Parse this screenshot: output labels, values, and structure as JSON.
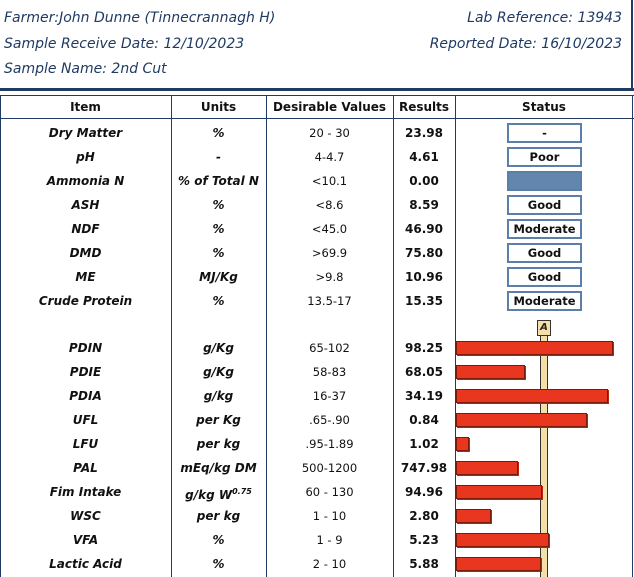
{
  "header": {
    "farmer": "Farmer:John Dunne (Tinnecrannagh H)",
    "lab_reference": "Lab Reference: 13943",
    "sample_receive_date": "Sample Receive Date: 12/10/2023",
    "reported_date": "Reported Date: 16/10/2023",
    "sample_name": "Sample Name: 2nd Cut"
  },
  "table": {
    "columns": [
      "Item",
      "Units",
      "Desirable Values",
      "Results",
      "Status"
    ],
    "rows_status": [
      {
        "item": "Dry Matter",
        "units": "%",
        "desirable": "20 - 30",
        "result": "23.98",
        "status": "-",
        "filled": false
      },
      {
        "item": "pH",
        "units": "-",
        "desirable": "4-4.7",
        "result": "4.61",
        "status": "Poor",
        "filled": false
      },
      {
        "item": "Ammonia N",
        "units": "% of Total N",
        "desirable": "<10.1",
        "result": "0.00",
        "status": "",
        "filled": true
      },
      {
        "item": "ASH",
        "units": "%",
        "desirable": "<8.6",
        "result": "8.59",
        "status": "Good",
        "filled": false
      },
      {
        "item": "NDF",
        "units": "%",
        "desirable": "<45.0",
        "result": "46.90",
        "status": "Moderate",
        "filled": false
      },
      {
        "item": "DMD",
        "units": "%",
        "desirable": ">69.9",
        "result": "75.80",
        "status": "Good",
        "filled": false
      },
      {
        "item": "ME",
        "units": "MJ/Kg",
        "desirable": ">9.8",
        "result": "10.96",
        "status": "Good",
        "filled": false
      },
      {
        "item": "Crude Protein",
        "units": "%",
        "desirable": "13.5-17",
        "result": "15.35",
        "status": "Moderate",
        "filled": false
      }
    ],
    "bar_axis_label": "A",
    "rows_bar": [
      {
        "item": "PDIN",
        "units": "g/Kg",
        "desirable": "65-102",
        "result": "98.25",
        "bar_level": 0.98
      },
      {
        "item": "PDIE",
        "units": "g/Kg",
        "desirable": "58-83",
        "result": "68.05",
        "bar_level": 0.43
      },
      {
        "item": "PDIA",
        "units": "g/kg",
        "desirable": "16-37",
        "result": "34.19",
        "bar_level": 0.95
      },
      {
        "item": "UFL",
        "units": "per Kg",
        "desirable": ".65-.90",
        "result": "0.84",
        "bar_level": 0.82
      },
      {
        "item": "LFU",
        "units": "per kg",
        "desirable": ".95-1.89",
        "result": "1.02",
        "bar_level": 0.08
      },
      {
        "item": "PAL",
        "units": "mEq/kg DM",
        "desirable": "500-1200",
        "result": "747.98",
        "bar_level": 0.39
      },
      {
        "item": "Fim Intake",
        "units": "g/kg W",
        "units_sup": "0.75",
        "desirable": "60 - 130",
        "result": "94.96",
        "bar_level": 0.54
      },
      {
        "item": "WSC",
        "units": "per kg",
        "desirable": "1 - 10",
        "result": "2.80",
        "bar_level": 0.22
      },
      {
        "item": "VFA",
        "units": "%",
        "desirable": "1 - 9",
        "result": "5.23",
        "bar_level": 0.58
      },
      {
        "item": "Lactic Acid",
        "units": "%",
        "desirable": "2 - 10",
        "result": "5.88",
        "bar_level": 0.53
      }
    ]
  }
}
